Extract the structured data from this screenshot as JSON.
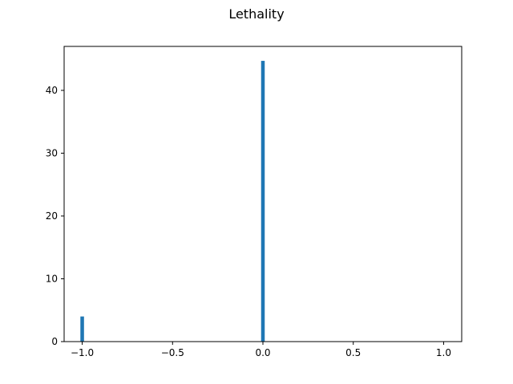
{
  "chart_data": {
    "type": "bar",
    "title": "Lethality",
    "xlabel": "",
    "ylabel": "",
    "xlim": [
      -1.1,
      1.1
    ],
    "ylim": [
      0,
      47
    ],
    "xticks": [
      -1.0,
      -0.5,
      0.0,
      0.5,
      1.0
    ],
    "xtick_labels": [
      "−1.0",
      "−0.5",
      "0.0",
      "0.5",
      "1.0"
    ],
    "yticks": [
      0,
      10,
      20,
      30,
      40
    ],
    "ytick_labels": [
      "0",
      "10",
      "20",
      "30",
      "40"
    ],
    "bin_width": 0.02,
    "bars": [
      {
        "x": -1.0,
        "value": 4
      },
      {
        "x": 0.0,
        "value": 44.7
      }
    ],
    "bar_color": "#1f77b4",
    "grid": false,
    "legend": "none"
  }
}
